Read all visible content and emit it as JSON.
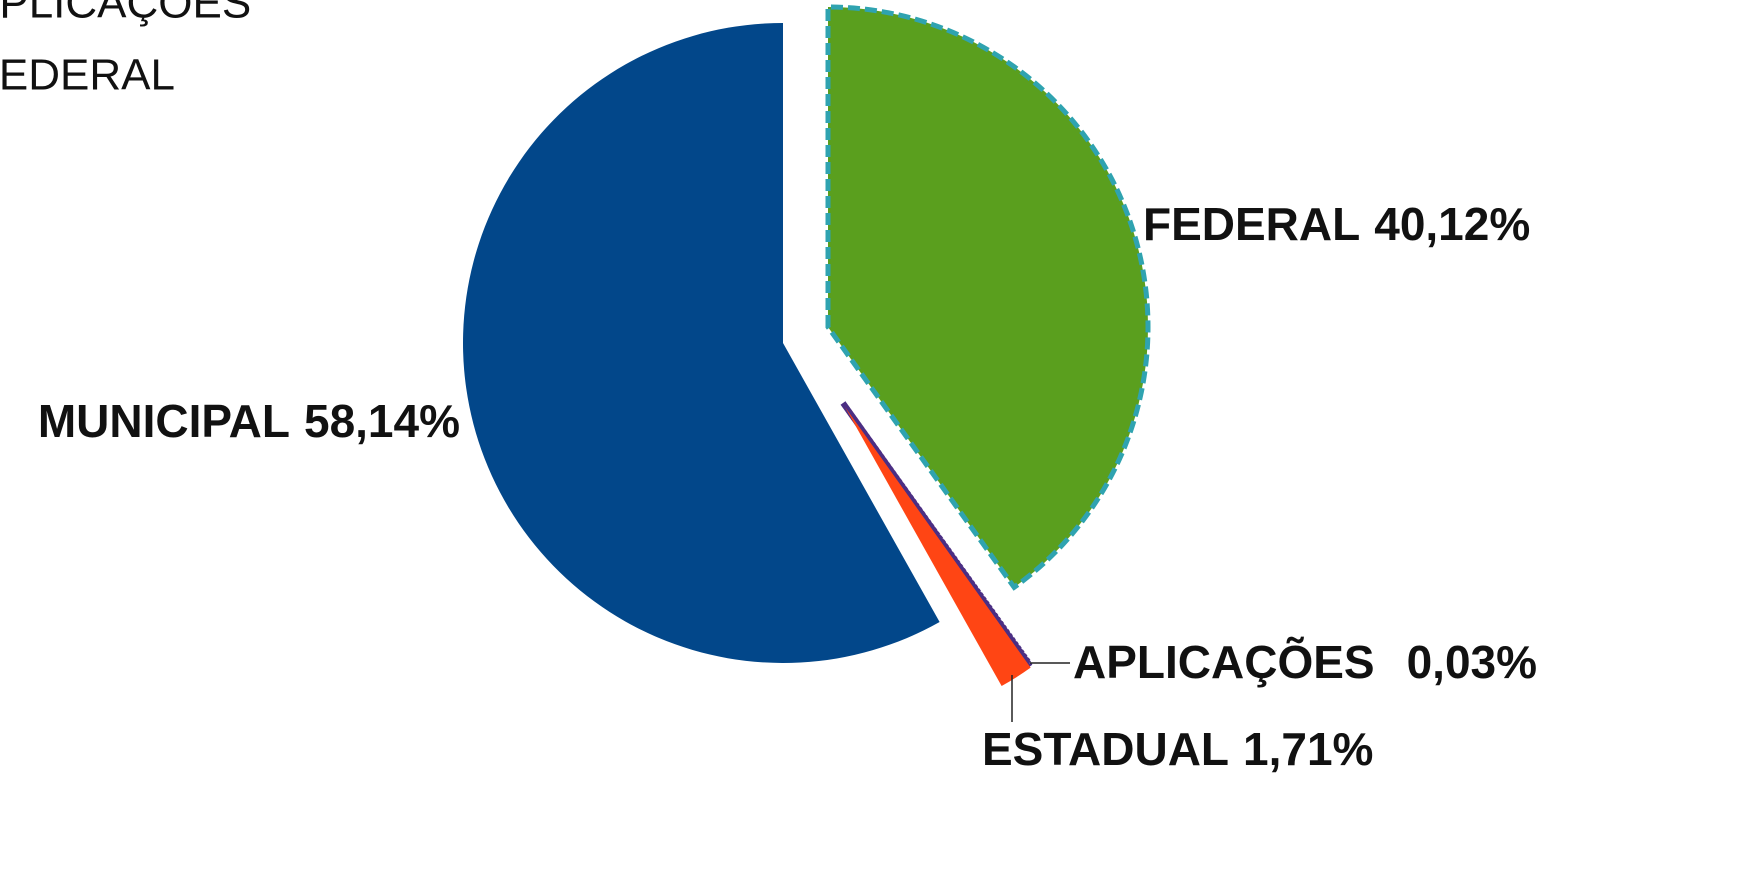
{
  "chart_data": {
    "type": "pie",
    "categories": [
      "FEDERAL",
      "APLICAÇÕES",
      "ESTADUAL",
      "MUNICIPAL"
    ],
    "values": [
      40.12,
      0.03,
      1.71,
      58.14
    ],
    "value_labels": [
      "40,12%",
      "0,03%",
      "1,71%",
      "58,14%"
    ],
    "colors": [
      "#5A9F1E",
      "#4B2E83",
      "#FF4514",
      "#02478A"
    ],
    "legend": "top-left"
  }
}
